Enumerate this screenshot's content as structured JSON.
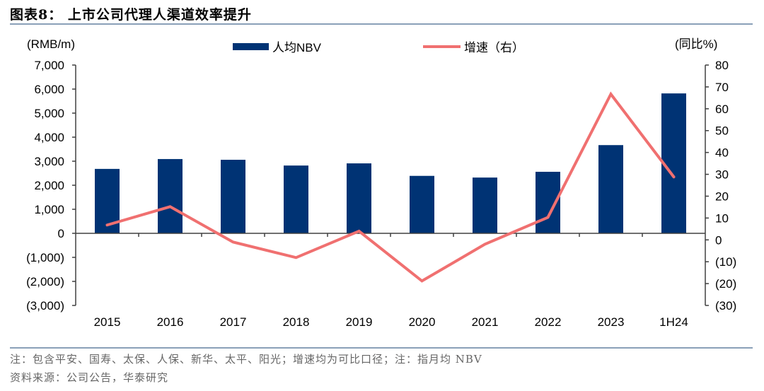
{
  "header": {
    "title": "图表8：   上市公司代理人渠道效率提升"
  },
  "footer": {
    "note": "注：包含平安、国寿、太保、人保、新华、太平、阳光；增速均为可比口径；注：指月均 NBV",
    "source": "资料来源：公司公告，华泰研究"
  },
  "colors": {
    "bar": "#003374",
    "line": "#f07070",
    "axis": "#404040"
  },
  "chart_data": {
    "type": "bar+line",
    "title": "上市公司代理人渠道效率提升",
    "categories": [
      "2015",
      "2016",
      "2017",
      "2018",
      "2019",
      "2020",
      "2021",
      "2022",
      "2023",
      "1H24"
    ],
    "series": [
      {
        "name": "人均NBV",
        "type": "bar",
        "axis": "left",
        "values": [
          2680,
          3090,
          3060,
          2820,
          2910,
          2390,
          2320,
          2560,
          3670,
          5820
        ]
      },
      {
        "name": "增速（右）",
        "type": "line",
        "axis": "right",
        "values": [
          6.8,
          15.2,
          -1.0,
          -8.1,
          4.0,
          -18.8,
          -2.0,
          10.3,
          66.7,
          28.8
        ]
      }
    ],
    "left_axis": {
      "label": "(RMB/m)",
      "ylim": [
        -3000,
        7000
      ],
      "ticks": [
        7000,
        6000,
        5000,
        4000,
        3000,
        2000,
        1000,
        0,
        -1000,
        -2000,
        -3000
      ],
      "tick_labels": [
        "7,000",
        "6,000",
        "5,000",
        "4,000",
        "3,000",
        "2,000",
        "1,000",
        "0",
        "(1,000)",
        "(2,000)",
        "(3,000)"
      ]
    },
    "right_axis": {
      "label": "(同比%)",
      "ylim": [
        -30,
        80
      ],
      "ticks": [
        80,
        70,
        60,
        50,
        40,
        30,
        20,
        10,
        0,
        -10,
        -20,
        -30
      ],
      "tick_labels": [
        "80",
        "70",
        "60",
        "50",
        "40",
        "30",
        "20",
        "10",
        "0",
        "(10)",
        "(20)",
        "(30)"
      ]
    },
    "legend": {
      "placement": "top-center",
      "entries": [
        "人均NBV",
        "增速（右）"
      ]
    },
    "grid": false
  }
}
